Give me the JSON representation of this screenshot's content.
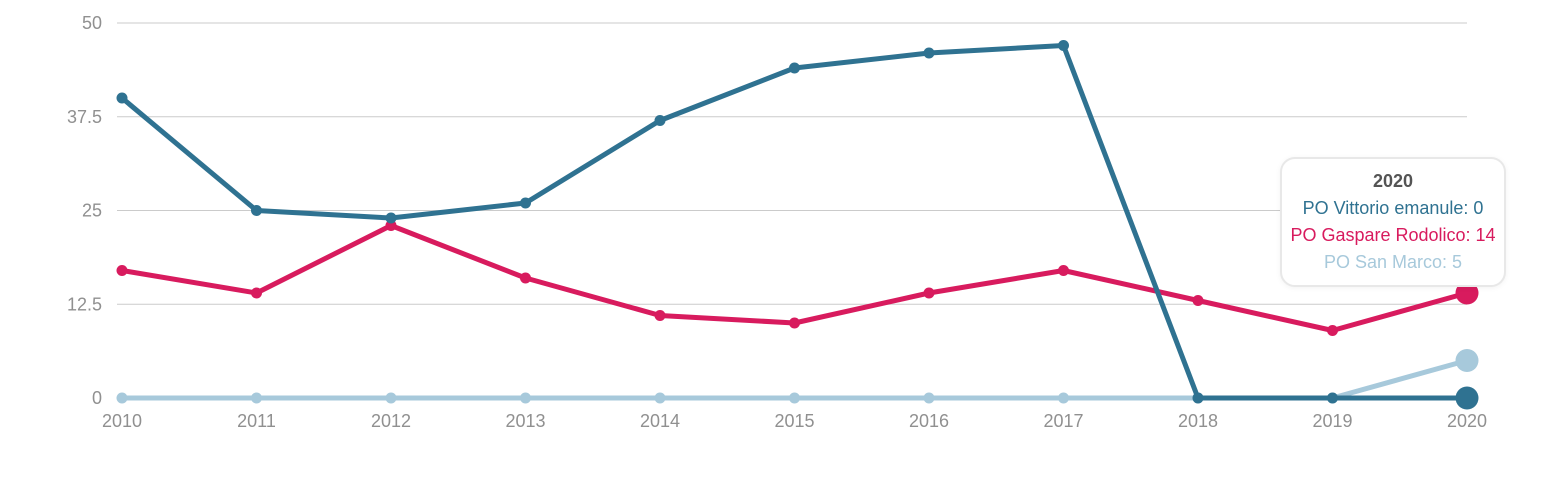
{
  "chart_data": {
    "type": "line",
    "title": "",
    "categories": [
      "2010",
      "2011",
      "2012",
      "2013",
      "2014",
      "2015",
      "2016",
      "2017",
      "2018",
      "2019",
      "2020"
    ],
    "y_axis": {
      "min": 0,
      "max": 50,
      "ticks": [
        {
          "value": 0,
          "label": "0"
        },
        {
          "value": 12.5,
          "label": "12.5"
        },
        {
          "value": 25,
          "label": "25"
        },
        {
          "value": 37.5,
          "label": "37.5"
        },
        {
          "value": 50,
          "label": "50"
        }
      ]
    },
    "grid": true,
    "legend_visible": false,
    "highlighted_category": "2020",
    "series": [
      {
        "name": "PO Vittorio emanule",
        "color": "#2f7291",
        "values": [
          40,
          25,
          24,
          26,
          37,
          44,
          46,
          47,
          0,
          0,
          0
        ]
      },
      {
        "name": "PO Gaspare Rodolico",
        "color": "#d81b5e",
        "values": [
          17,
          14,
          23,
          16,
          11,
          10,
          14,
          17,
          13,
          9,
          14
        ]
      },
      {
        "name": "PO San Marco",
        "color": "#a7c9db",
        "values": [
          0,
          0,
          0,
          0,
          0,
          0,
          0,
          0,
          0,
          0,
          5
        ]
      }
    ]
  },
  "tooltip": {
    "title": "2020",
    "entries": [
      {
        "text": "PO Vittorio emanule: 0",
        "color": "#2f7291"
      },
      {
        "text": "PO Gaspare Rodolico: 14",
        "color": "#d81b5e"
      },
      {
        "text": "PO San Marco: 5",
        "color": "#a7c9db"
      }
    ]
  },
  "colors": {
    "background": "#ffffff",
    "gridline": "#cbcbcb",
    "axis_label": "#909090",
    "tooltip_title": "#545454",
    "tooltip_border": "#e8e8e8"
  }
}
